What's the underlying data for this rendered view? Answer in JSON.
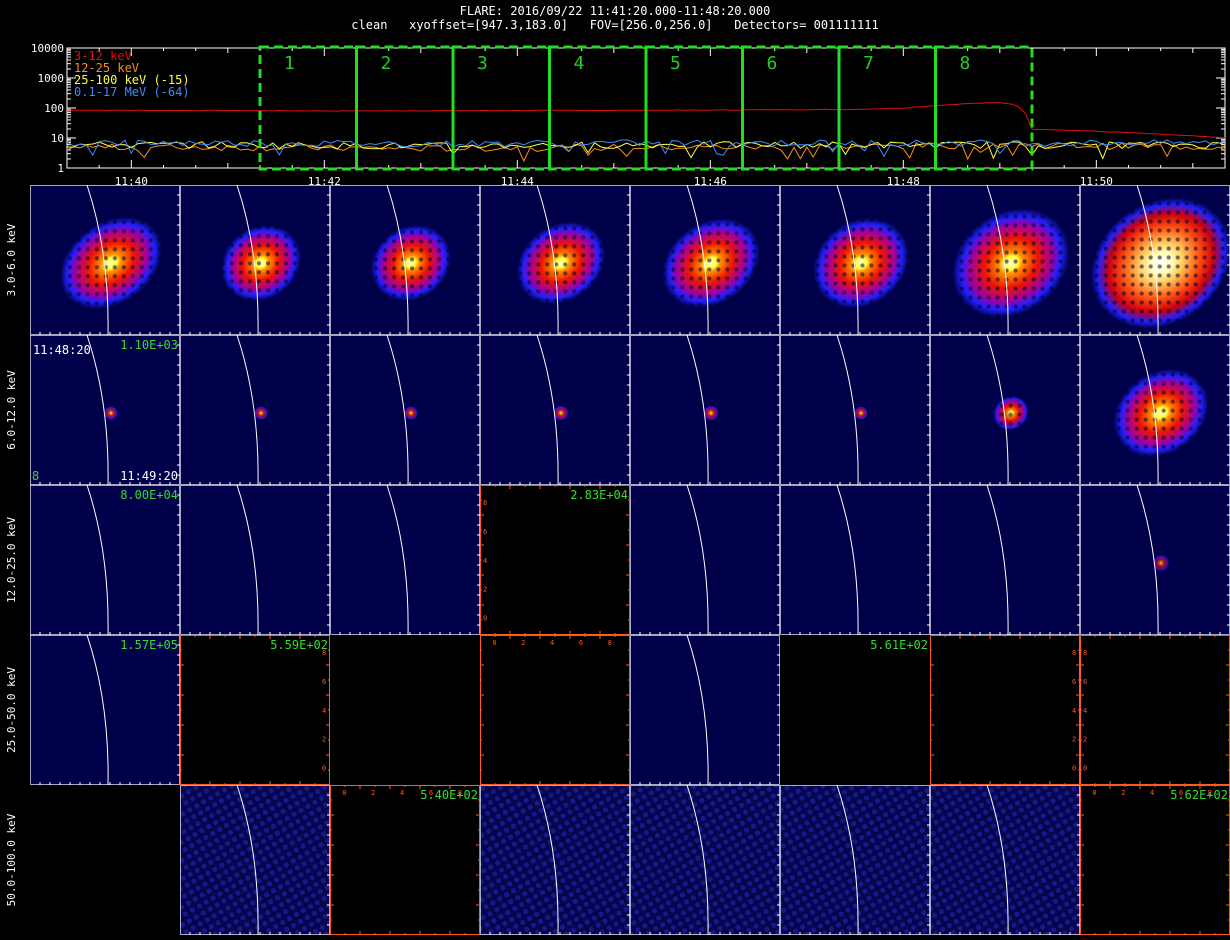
{
  "header": {
    "title": "FLARE: 2016/09/22 11:41:20.000-11:48:20.000",
    "options": "clean   xyoffset=[947.3,183.0]   FOV=[256.0,256.0]   Detectors= 001111111"
  },
  "chart_data": [
    {
      "type": "line",
      "y_scale": "log",
      "ylim": [
        1,
        10000
      ],
      "ytick_labels": [
        "1",
        "10",
        "100",
        "1000",
        "10000"
      ],
      "xlim": [
        "11:39:20",
        "11:51:20"
      ],
      "xtick_labels": [
        "11:40",
        "11:42",
        "11:44",
        "11:46",
        "11:48",
        "11:50"
      ],
      "series": [
        {
          "name": "3-12 keV",
          "color": "#e01010",
          "x": [
            "11:39:20",
            "11:42:00",
            "11:44:00",
            "11:46:00",
            "11:47:30",
            "11:48:00",
            "11:48:40",
            "11:49:00",
            "11:49:10",
            "11:49:20",
            "11:51:20"
          ],
          "y": [
            85,
            80,
            82,
            85,
            90,
            100,
            140,
            150,
            130,
            20,
            10
          ]
        },
        {
          "name": "12-25 keV",
          "color": "#ff8c1a",
          "x": [
            "11:39:20",
            "11:41:00",
            "11:43:00",
            "11:45:00",
            "11:47:00",
            "11:49:00",
            "11:51:20"
          ],
          "y": [
            5,
            5,
            4.5,
            5,
            5,
            6,
            5
          ]
        },
        {
          "name": "25-100 keV (-15)",
          "color": "#ffff40",
          "x": [
            "11:39:20",
            "11:41:00",
            "11:43:00",
            "11:45:00",
            "11:47:00",
            "11:49:00",
            "11:51:20"
          ],
          "y": [
            6,
            6,
            5.5,
            6,
            6,
            6,
            6
          ]
        },
        {
          "name": "0.1-17 MeV (-64)",
          "color": "#3a8cff",
          "x": [
            "11:39:20",
            "11:41:00",
            "11:43:00",
            "11:45:00",
            "11:47:00",
            "11:49:00",
            "11:51:20"
          ],
          "y": [
            7,
            7,
            6.5,
            7,
            7,
            7,
            7
          ]
        }
      ],
      "intervals": [
        {
          "label": "1",
          "start": "11:41:20",
          "end": "11:42:20"
        },
        {
          "label": "2",
          "start": "11:42:20",
          "end": "11:43:20"
        },
        {
          "label": "3",
          "start": "11:43:20",
          "end": "11:44:20"
        },
        {
          "label": "4",
          "start": "11:44:20",
          "end": "11:45:20"
        },
        {
          "label": "5",
          "start": "11:45:20",
          "end": "11:46:20"
        },
        {
          "label": "6",
          "start": "11:46:20",
          "end": "11:47:20"
        },
        {
          "label": "7",
          "start": "11:47:20",
          "end": "11:48:20"
        },
        {
          "label": "8",
          "start": "11:48:20",
          "end": "11:49:20"
        }
      ]
    },
    {
      "type": "heatmap",
      "rows": [
        {
          "label": "3.0-6.0 keV",
          "cells": [
            {
              "kind": "image",
              "size": 0.45,
              "ellipse": [
                1.65,
                1.2
              ],
              "peak": 1.0
            },
            {
              "kind": "image",
              "size": 0.4,
              "ellipse": [
                1.4,
                1.2
              ],
              "peak": 1.0
            },
            {
              "kind": "image",
              "size": 0.4,
              "ellipse": [
                1.4,
                1.2
              ],
              "peak": 1.0
            },
            {
              "kind": "image",
              "size": 0.42,
              "ellipse": [
                1.5,
                1.2
              ],
              "peak": 1.0
            },
            {
              "kind": "image",
              "size": 0.45,
              "ellipse": [
                1.55,
                1.2
              ],
              "peak": 1.0
            },
            {
              "kind": "image",
              "size": 0.45,
              "ellipse": [
                1.5,
                1.25
              ],
              "peak": 1.0
            },
            {
              "kind": "image",
              "size": 0.52,
              "ellipse": [
                1.6,
                1.3
              ],
              "peak": 1.0
            },
            {
              "kind": "image",
              "size": 0.62,
              "ellipse": [
                1.6,
                1.3
              ],
              "peak": 1.0,
              "saturated": true
            }
          ]
        },
        {
          "label": "6.0-12.0 keV",
          "cells": [
            {
              "kind": "image",
              "size": 0.09,
              "ellipse": [
                1,
                1
              ],
              "peak": 0.8,
              "max": "1.10E+03",
              "time_start": "11:48:20",
              "time_end": "11:49:20",
              "interval": "8"
            },
            {
              "kind": "image",
              "size": 0.09,
              "ellipse": [
                1,
                1
              ],
              "peak": 0.8
            },
            {
              "kind": "image",
              "size": 0.09,
              "ellipse": [
                1,
                1
              ],
              "peak": 0.8
            },
            {
              "kind": "image",
              "size": 0.1,
              "ellipse": [
                1,
                1
              ],
              "peak": 0.8
            },
            {
              "kind": "image",
              "size": 0.1,
              "ellipse": [
                1,
                1
              ],
              "peak": 0.8
            },
            {
              "kind": "image",
              "size": 0.09,
              "ellipse": [
                1,
                1
              ],
              "peak": 0.8
            },
            {
              "kind": "image",
              "size": 0.22,
              "ellipse": [
                1.1,
                1
              ],
              "peak": 0.95
            },
            {
              "kind": "image",
              "size": 0.45,
              "ellipse": [
                1.5,
                1.2
              ],
              "peak": 1.0
            }
          ]
        },
        {
          "label": "12.0-25.0 keV",
          "cells": [
            {
              "kind": "image",
              "size": 0,
              "max": "8.00E+04"
            },
            {
              "kind": "image",
              "size": 0
            },
            {
              "kind": "image",
              "size": 0
            },
            {
              "kind": "empty",
              "max": "2.83E+04",
              "ticks": "left"
            },
            {
              "kind": "image",
              "size": 0
            },
            {
              "kind": "image",
              "size": 0
            },
            {
              "kind": "image",
              "size": 0
            },
            {
              "kind": "image",
              "size": 0.11,
              "ellipse": [
                1,
                1
              ],
              "peak": 0.65
            }
          ]
        },
        {
          "label": "25.0-50.0 keV",
          "cells": [
            {
              "kind": "image",
              "size": 0,
              "max": "1.57E+05"
            },
            {
              "kind": "empty",
              "max": "5.59E+02",
              "ticks": "right"
            },
            {
              "kind": "empty",
              "ticks": "none"
            },
            {
              "kind": "empty",
              "ticks": "top"
            },
            {
              "kind": "image",
              "size": 0
            },
            {
              "kind": "empty",
              "max": "5.61E+02",
              "ticks": "none"
            },
            {
              "kind": "empty",
              "ticks": "right"
            },
            {
              "kind": "empty",
              "ticks": "left"
            }
          ]
        },
        {
          "label": "50.0-100.0 keV",
          "cells": [
            {
              "kind": "empty",
              "ticks": "none"
            },
            {
              "kind": "noise"
            },
            {
              "kind": "empty",
              "max": "5.40E+02",
              "ticks": "top"
            },
            {
              "kind": "noise"
            },
            {
              "kind": "noise"
            },
            {
              "kind": "noise"
            },
            {
              "kind": "noise"
            },
            {
              "kind": "empty",
              "max": "5.62E+02",
              "ticks": "top"
            }
          ]
        }
      ]
    }
  ]
}
